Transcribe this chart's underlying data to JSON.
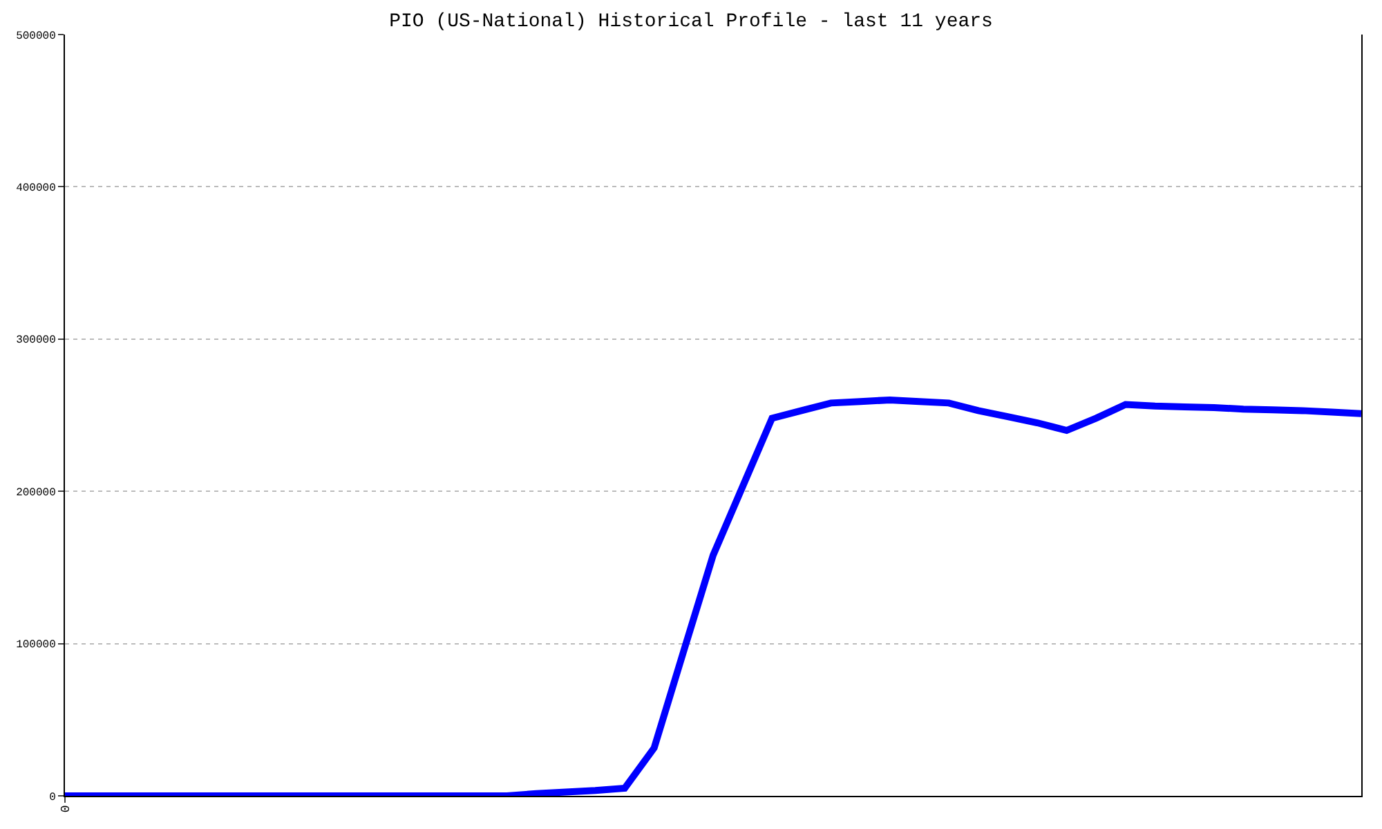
{
  "chart_data": {
    "type": "line",
    "title": "PIO (US-National) Historical Profile - last 11 years",
    "categories": [
      "0",
      null,
      null,
      null,
      null,
      null,
      null,
      null,
      null,
      null,
      null,
      null,
      null,
      null,
      null,
      null,
      null,
      null,
      null,
      null,
      null,
      null,
      null,
      null,
      null,
      null,
      null,
      null,
      null,
      null,
      null,
      null,
      null,
      null,
      null,
      null,
      null,
      null,
      null,
      null,
      null,
      null,
      null,
      null,
      null
    ],
    "series": [
      {
        "color": "#0000ff",
        "values": [
          0,
          0,
          0,
          0,
          0,
          0,
          0,
          0,
          0,
          0,
          0,
          0,
          0,
          0,
          0,
          0,
          1500,
          2500,
          3500,
          5000,
          31500,
          95000,
          158000,
          203000,
          248000,
          253000,
          258000,
          259000,
          260000,
          259000,
          258000,
          253000,
          249000,
          245000,
          240000,
          248000,
          257000,
          256000,
          255500,
          255000,
          254000,
          253500,
          253000,
          252000,
          251000
        ]
      }
    ],
    "ylim": [
      0,
      500000
    ],
    "yticks": [
      0,
      100000,
      200000,
      300000,
      400000,
      500000
    ],
    "grid": "y",
    "legend": false,
    "marker": "none",
    "line_style": "solid"
  }
}
